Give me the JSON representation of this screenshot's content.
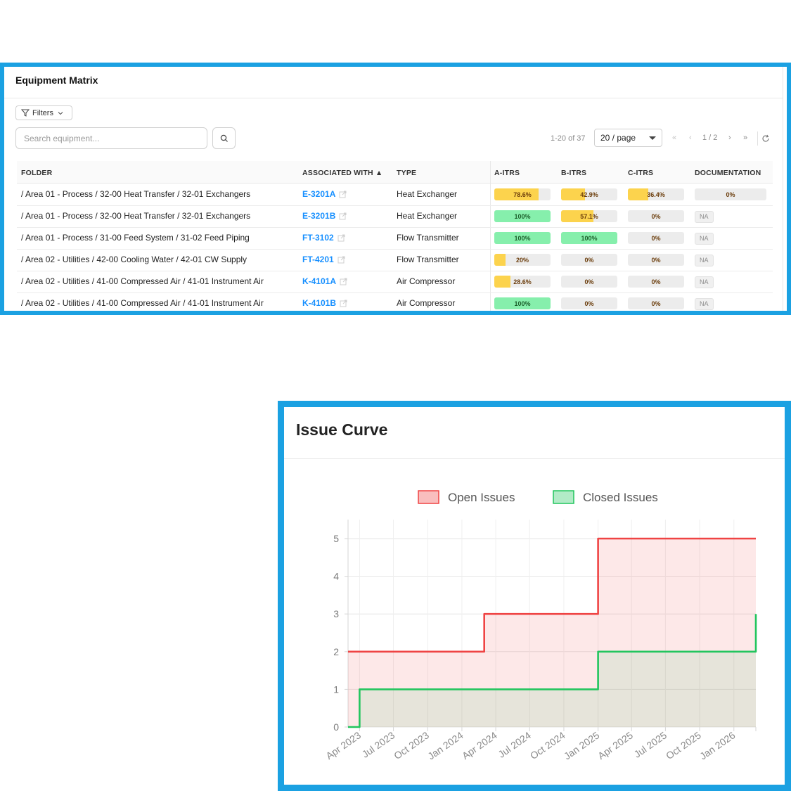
{
  "matrix": {
    "title": "Equipment Matrix",
    "filters_label": "Filters",
    "search_placeholder": "Search equipment...",
    "range_text": "1-20 of 37",
    "page_size": "20 / page",
    "page_indicator": "1 / 2",
    "columns": [
      "FOLDER",
      "ASSOCIATED WITH ▲",
      "TYPE",
      "A-ITRS",
      "B-ITRS",
      "C-ITRS",
      "DOCUMENTATION"
    ],
    "rows": [
      {
        "folder": "/ Area 01 - Process / 32-00 Heat Transfer / 32-01 Exchangers",
        "tag": "E-3201A",
        "type": "Heat Exchanger",
        "a": {
          "label": "78.6%",
          "value": 78.6
        },
        "b": {
          "label": "42.9%",
          "value": 42.9
        },
        "c": {
          "label": "36.4%",
          "value": 36.4
        },
        "doc": {
          "label": "0%",
          "value": 0
        }
      },
      {
        "folder": "/ Area 01 - Process / 32-00 Heat Transfer / 32-01 Exchangers",
        "tag": "E-3201B",
        "type": "Heat Exchanger",
        "a": {
          "label": "100%",
          "value": 100
        },
        "b": {
          "label": "57.1%",
          "value": 57.1
        },
        "c": {
          "label": "0%",
          "value": 0
        },
        "doc": {
          "label": "NA",
          "value": null
        }
      },
      {
        "folder": "/ Area 01 - Process / 31-00 Feed System / 31-02 Feed Piping",
        "tag": "FT-3102",
        "type": "Flow Transmitter",
        "a": {
          "label": "100%",
          "value": 100
        },
        "b": {
          "label": "100%",
          "value": 100
        },
        "c": {
          "label": "0%",
          "value": 0
        },
        "doc": {
          "label": "NA",
          "value": null
        }
      },
      {
        "folder": "/ Area 02 - Utilities / 42-00 Cooling Water / 42-01 CW Supply",
        "tag": "FT-4201",
        "type": "Flow Transmitter",
        "a": {
          "label": "20%",
          "value": 20
        },
        "b": {
          "label": "0%",
          "value": 0
        },
        "c": {
          "label": "0%",
          "value": 0
        },
        "doc": {
          "label": "NA",
          "value": null
        }
      },
      {
        "folder": "/ Area 02 - Utilities / 41-00 Compressed Air / 41-01 Instrument Air",
        "tag": "K-4101A",
        "type": "Air Compressor",
        "a": {
          "label": "28.6%",
          "value": 28.6
        },
        "b": {
          "label": "0%",
          "value": 0
        },
        "c": {
          "label": "0%",
          "value": 0
        },
        "doc": {
          "label": "NA",
          "value": null
        }
      },
      {
        "folder": "/ Area 02 - Utilities / 41-00 Compressed Air / 41-01 Instrument Air",
        "tag": "K-4101B",
        "type": "Air Compressor",
        "a": {
          "label": "100%",
          "value": 100
        },
        "b": {
          "label": "0%",
          "value": 0
        },
        "c": {
          "label": "0%",
          "value": 0
        },
        "doc": {
          "label": "NA",
          "value": null
        }
      }
    ],
    "colors": {
      "partial": "#fcd34d",
      "complete": "#86efac",
      "track": "#ececec",
      "link": "#1890ff",
      "frame": "#1ba1e2"
    }
  },
  "issue_curve": {
    "title": "Issue Curve"
  },
  "chart_data": {
    "type": "line",
    "step": true,
    "filled": true,
    "x_tick_labels": [
      "Apr 2023",
      "Jul 2023",
      "Oct 2023",
      "Jan 2024",
      "Apr 2024",
      "Jul 2024",
      "Oct 2024",
      "Jan 2025",
      "Apr 2025",
      "Jul 2025",
      "Oct 2025",
      "Jan 2026"
    ],
    "ylim": [
      0,
      5
    ],
    "y_ticks": [
      0,
      1,
      2,
      3,
      4,
      5
    ],
    "grid": true,
    "legend_position": "top-center",
    "series": [
      {
        "name": "Open Issues",
        "color": "#ef4444",
        "points": [
          [
            "2023-03-01",
            2
          ],
          [
            "2024-03-01",
            2
          ],
          [
            "2024-03-01",
            3
          ],
          [
            "2025-01-01",
            3
          ],
          [
            "2025-01-01",
            5
          ],
          [
            "2026-03-01",
            5
          ]
        ]
      },
      {
        "name": "Closed Issues",
        "color": "#22c55e",
        "points": [
          [
            "2023-03-01",
            0
          ],
          [
            "2023-04-01",
            0
          ],
          [
            "2023-04-01",
            1
          ],
          [
            "2025-01-01",
            1
          ],
          [
            "2025-01-01",
            2
          ],
          [
            "2026-03-01",
            2
          ],
          [
            "2026-03-01",
            3
          ]
        ]
      }
    ]
  }
}
